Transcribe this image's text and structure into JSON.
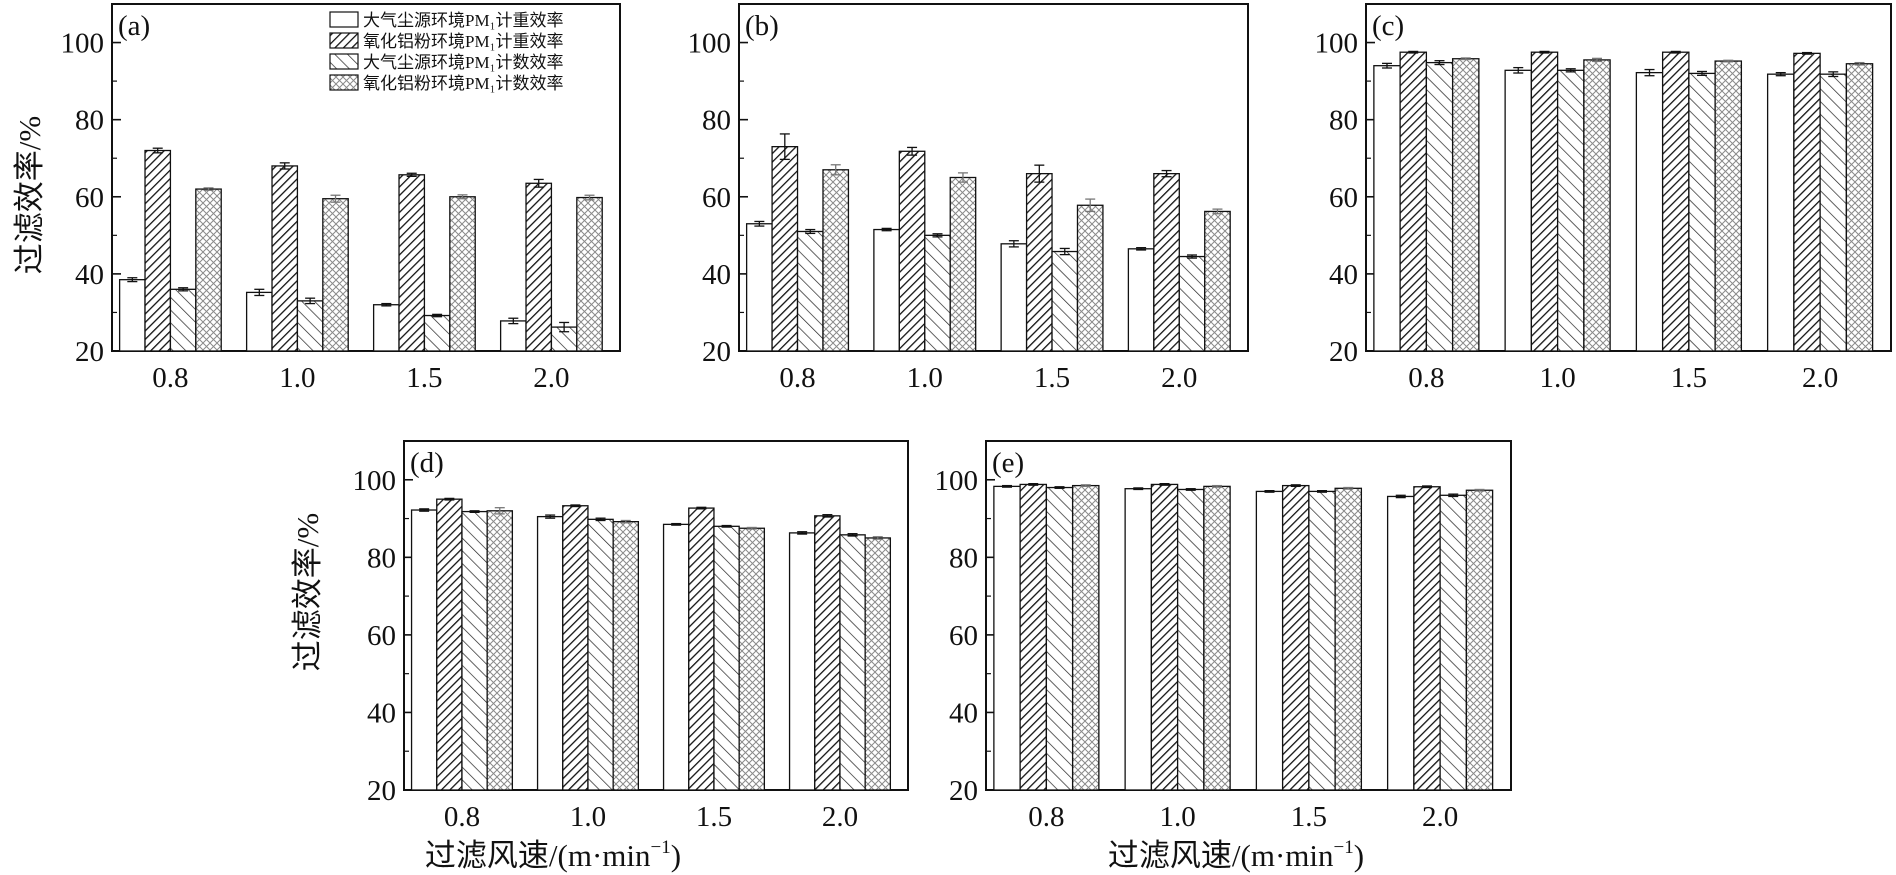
{
  "figure": {
    "ylabel_top": "过滤效率/%",
    "ylabel_bottom": "过滤效率/%",
    "xlabel_d": "过滤风速/(m·min",
    "xlabel_e": "过滤风速/(m·min",
    "xlabel_sup": "−1",
    "xlabel_close": ")"
  },
  "chart_data": [
    {
      "type": "bar",
      "panel_label": "(a)",
      "categories": [
        "0.8",
        "1.0",
        "1.5",
        "2.0"
      ],
      "ylim": [
        20,
        110
      ],
      "yticks": [
        20,
        40,
        60,
        80,
        100
      ],
      "legend": "top-right",
      "series": [
        {
          "name": "大气尘源环境PM₁计重效率",
          "pattern": "none",
          "values": [
            38.5,
            35.2,
            32.0,
            27.8
          ],
          "errors": [
            0.5,
            0.8,
            0.3,
            0.7
          ]
        },
        {
          "name": "氧化铝粉环境PM₁计重效率",
          "pattern": "dense-diag",
          "values": [
            72.0,
            68.0,
            65.7,
            63.5
          ],
          "errors": [
            0.6,
            0.8,
            0.4,
            1.0
          ]
        },
        {
          "name": "大气尘源环境PM₁计数效率",
          "pattern": "sparse-diag",
          "values": [
            36.0,
            33.0,
            29.2,
            26.2
          ],
          "errors": [
            0.4,
            0.7,
            0.3,
            1.2
          ]
        },
        {
          "name": "氧化铝粉环境PM₁计数效率",
          "pattern": "crosshatch",
          "values": [
            62.0,
            59.5,
            60.0,
            59.8
          ],
          "errors": [
            0.3,
            0.9,
            0.5,
            0.6
          ]
        }
      ]
    },
    {
      "type": "bar",
      "panel_label": "(b)",
      "categories": [
        "0.8",
        "1.0",
        "1.5",
        "2.0"
      ],
      "ylim": [
        20,
        110
      ],
      "yticks": [
        20,
        40,
        60,
        80,
        100
      ],
      "series": [
        {
          "pattern": "none",
          "values": [
            53.0,
            51.5,
            47.8,
            46.5
          ],
          "errors": [
            0.6,
            0.3,
            0.8,
            0.3
          ]
        },
        {
          "pattern": "dense-diag",
          "values": [
            73.0,
            71.8,
            66.0,
            66.0
          ],
          "errors": [
            3.3,
            1.0,
            2.2,
            0.8
          ]
        },
        {
          "pattern": "sparse-diag",
          "values": [
            51.0,
            50.0,
            45.8,
            44.5
          ],
          "errors": [
            0.5,
            0.4,
            0.8,
            0.4
          ]
        },
        {
          "pattern": "crosshatch",
          "values": [
            67.0,
            65.0,
            57.8,
            56.2
          ],
          "errors": [
            1.3,
            1.2,
            1.6,
            0.6
          ]
        }
      ]
    },
    {
      "type": "bar",
      "panel_label": "(c)",
      "categories": [
        "0.8",
        "1.0",
        "1.5",
        "2.0"
      ],
      "ylim": [
        20,
        110
      ],
      "yticks": [
        20,
        40,
        60,
        80,
        100
      ],
      "series": [
        {
          "pattern": "none",
          "values": [
            94.0,
            92.8,
            92.2,
            91.8
          ],
          "errors": [
            0.6,
            0.7,
            0.8,
            0.4
          ]
        },
        {
          "pattern": "dense-diag",
          "values": [
            97.5,
            97.5,
            97.5,
            97.2
          ],
          "errors": [
            0.2,
            0.2,
            0.2,
            0.2
          ]
        },
        {
          "pattern": "sparse-diag",
          "values": [
            94.8,
            92.8,
            92.0,
            91.8
          ],
          "errors": [
            0.5,
            0.4,
            0.5,
            0.6
          ]
        },
        {
          "pattern": "crosshatch",
          "values": [
            95.8,
            95.5,
            95.2,
            94.5
          ],
          "errors": [
            0.2,
            0.4,
            0.2,
            0.3
          ]
        }
      ]
    },
    {
      "type": "bar",
      "panel_label": "(d)",
      "categories": [
        "0.8",
        "1.0",
        "1.5",
        "2.0"
      ],
      "ylim": [
        20,
        110
      ],
      "yticks": [
        20,
        40,
        60,
        80,
        100
      ],
      "series": [
        {
          "pattern": "none",
          "values": [
            92.2,
            90.5,
            88.5,
            86.3
          ],
          "errors": [
            0.3,
            0.4,
            0.2,
            0.3
          ]
        },
        {
          "pattern": "dense-diag",
          "values": [
            95.0,
            93.3,
            92.7,
            90.7
          ],
          "errors": [
            0.2,
            0.2,
            0.2,
            0.3
          ]
        },
        {
          "pattern": "sparse-diag",
          "values": [
            91.8,
            89.8,
            88.0,
            85.8
          ],
          "errors": [
            0.2,
            0.3,
            0.2,
            0.3
          ]
        },
        {
          "pattern": "crosshatch",
          "values": [
            92.0,
            89.2,
            87.5,
            85.0
          ],
          "errors": [
            0.8,
            0.3,
            0.2,
            0.3
          ]
        }
      ]
    },
    {
      "type": "bar",
      "panel_label": "(e)",
      "categories": [
        "0.8",
        "1.0",
        "1.5",
        "2.0"
      ],
      "ylim": [
        20,
        110
      ],
      "yticks": [
        20,
        40,
        60,
        80,
        100
      ],
      "series": [
        {
          "pattern": "none",
          "values": [
            98.3,
            97.7,
            97.0,
            95.7
          ],
          "errors": [
            0.2,
            0.2,
            0.2,
            0.3
          ]
        },
        {
          "pattern": "dense-diag",
          "values": [
            98.8,
            98.8,
            98.5,
            98.2
          ],
          "errors": [
            0.2,
            0.2,
            0.2,
            0.2
          ]
        },
        {
          "pattern": "sparse-diag",
          "values": [
            98.0,
            97.5,
            97.0,
            96.0
          ],
          "errors": [
            0.2,
            0.2,
            0.2,
            0.3
          ]
        },
        {
          "pattern": "crosshatch",
          "values": [
            98.5,
            98.3,
            97.8,
            97.3
          ],
          "errors": [
            0.2,
            0.2,
            0.2,
            0.2
          ]
        }
      ]
    }
  ]
}
